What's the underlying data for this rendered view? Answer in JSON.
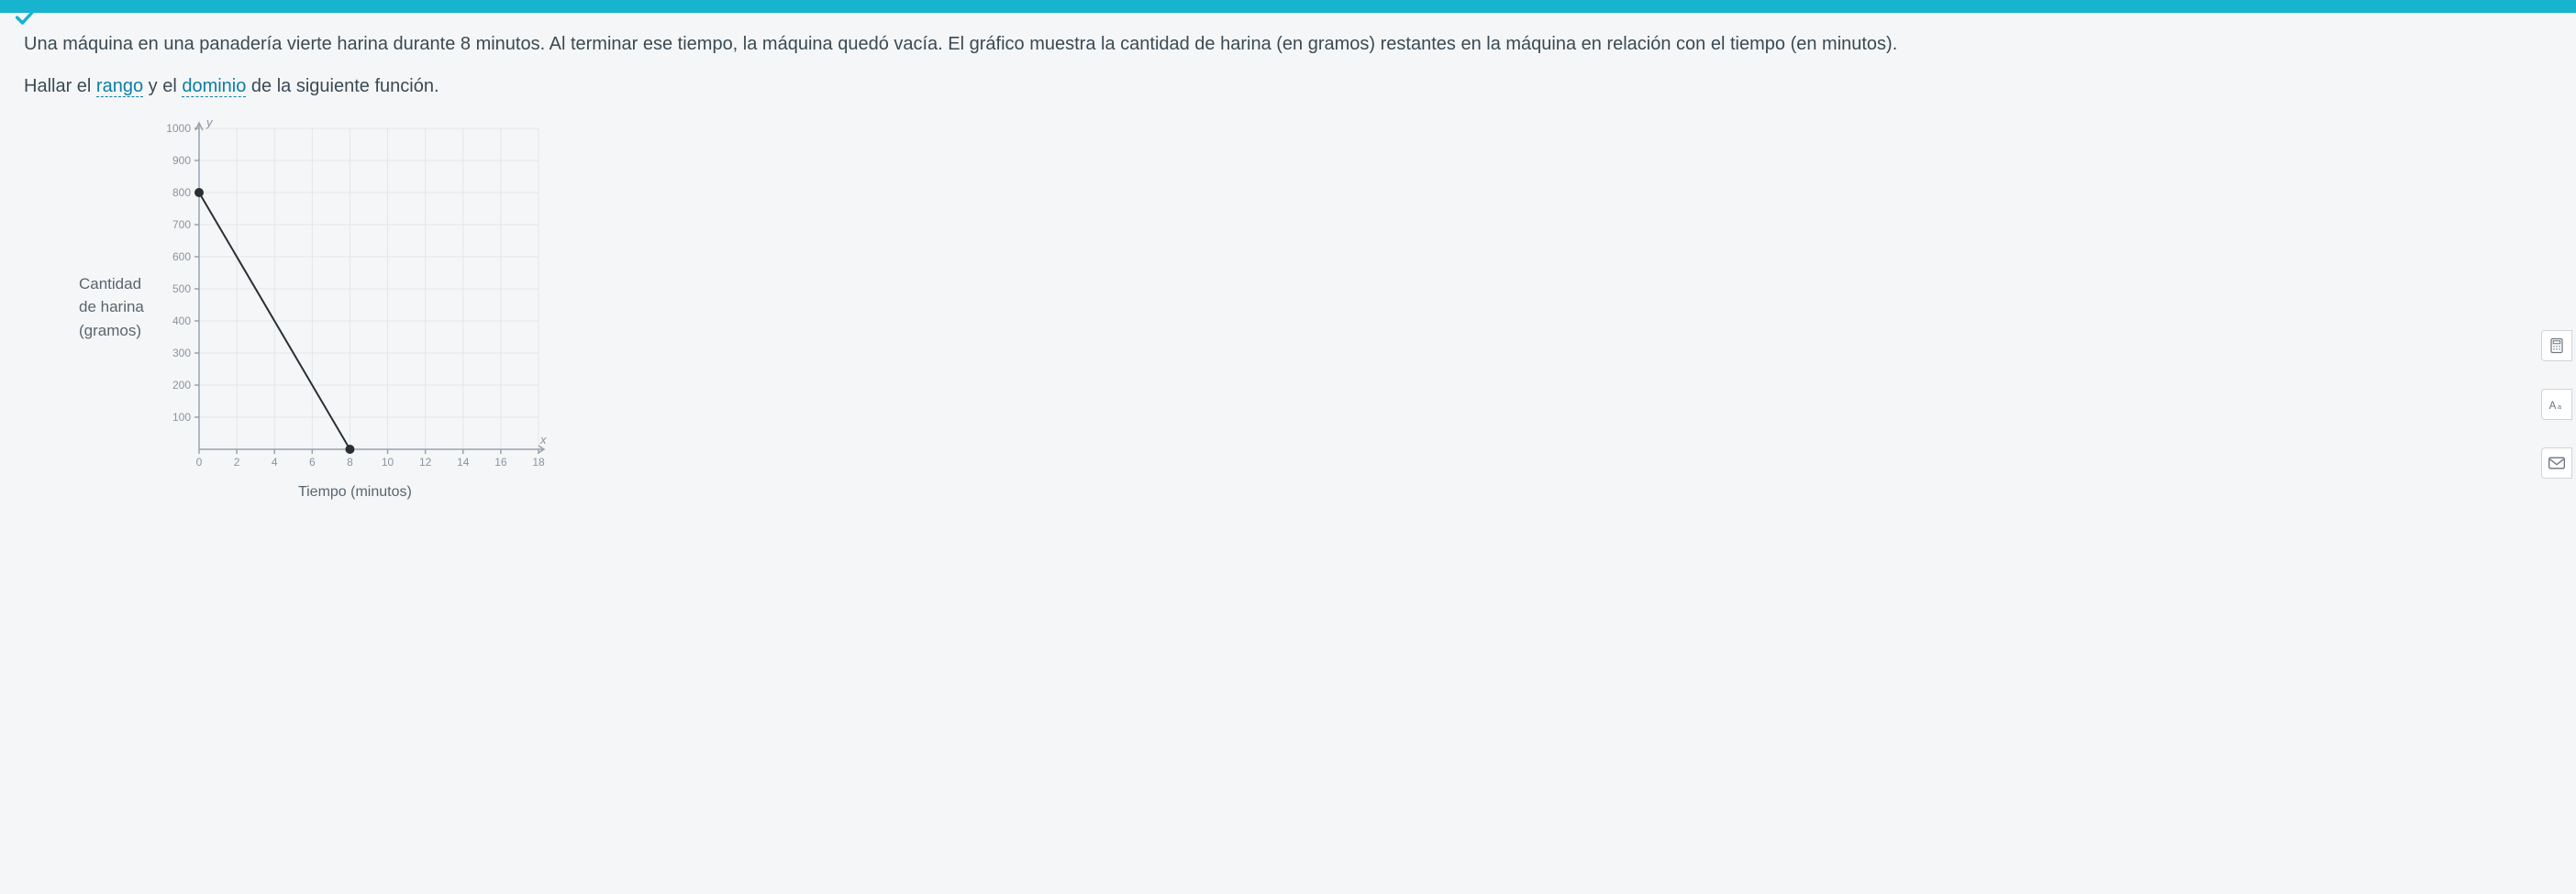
{
  "topbar": {
    "color": "#16b4cf"
  },
  "problem": {
    "prompt": "Una máquina en una panadería vierte harina durante 8 minutos. Al terminar ese tiempo, la máquina quedó vacía. El gráfico muestra la cantidad de harina (en gramos) restantes en la máquina en relación con el tiempo (en minutos).",
    "question_prefix": "Hallar el ",
    "term_rango": "rango",
    "question_mid": " y el ",
    "term_dominio": "dominio",
    "question_suffix": " de la siguiente función."
  },
  "chart": {
    "type": "line",
    "ylabel_line1": "Cantidad",
    "ylabel_line2": "de harina",
    "ylabel_line3": "(gramos)",
    "xlabel": "Tiempo (minutos)",
    "y_axis_name": "y",
    "x_axis_name": "x",
    "xlim": [
      0,
      18
    ],
    "ylim": [
      0,
      1000
    ],
    "xtick_step": 2,
    "ytick_step": 100,
    "xticks": [
      0,
      2,
      4,
      6,
      8,
      10,
      12,
      14,
      16,
      18
    ],
    "yticks": [
      100,
      200,
      300,
      400,
      500,
      600,
      700,
      800,
      900,
      1000
    ],
    "grid_color": "#e3e7ea",
    "axis_color": "#98a3ad",
    "line_color": "#2a2f36",
    "point_radius": 5,
    "background_color": "#f5f6f7",
    "data": [
      {
        "x": 0,
        "y": 800
      },
      {
        "x": 8,
        "y": 0
      }
    ]
  },
  "rail": {
    "calc_icon": "calculator-icon",
    "font_icon": "font-icon",
    "mail_icon": "mail-icon"
  }
}
